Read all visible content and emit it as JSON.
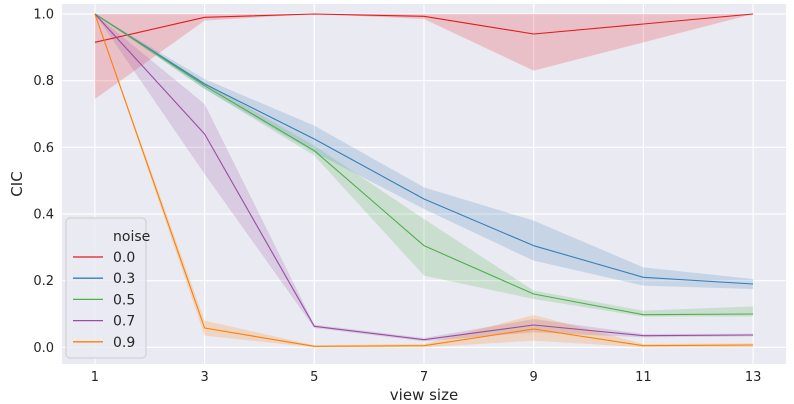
{
  "chart_data": {
    "type": "line",
    "xlabel": "view size",
    "ylabel": "CIC",
    "x": [
      1,
      3,
      5,
      7,
      9,
      11,
      13
    ],
    "xticks": [
      "1",
      "3",
      "5",
      "7",
      "9",
      "11",
      "13"
    ],
    "yticks": [
      "0.0",
      "0.2",
      "0.4",
      "0.6",
      "0.8",
      "1.0"
    ],
    "xlim": [
      0.4,
      13.6
    ],
    "ylim": [
      -0.05,
      1.03
    ],
    "grid": true,
    "background": "#eaeaf2",
    "legend": {
      "title": "noise",
      "placement": "lower-left"
    },
    "series": [
      {
        "name": "0.0",
        "color": "#e41a1c",
        "values": [
          0.915,
          0.99,
          1.0,
          0.993,
          0.94,
          0.97,
          1.0
        ],
        "lower": [
          0.745,
          0.98,
          1.0,
          0.985,
          0.83,
          0.915,
          1.0
        ],
        "upper": [
          1.0,
          1.0,
          1.0,
          1.0,
          1.0,
          1.0,
          1.0
        ]
      },
      {
        "name": "0.3",
        "color": "#377eb8",
        "values": [
          1.0,
          0.79,
          0.625,
          0.445,
          0.305,
          0.21,
          0.19
        ],
        "lower": [
          1.0,
          0.775,
          0.585,
          0.415,
          0.26,
          0.185,
          0.175
        ],
        "upper": [
          1.0,
          0.805,
          0.665,
          0.48,
          0.38,
          0.24,
          0.205
        ]
      },
      {
        "name": "0.5",
        "color": "#4daf4a",
        "values": [
          1.0,
          0.785,
          0.59,
          0.305,
          0.16,
          0.098,
          0.1
        ],
        "lower": [
          1.0,
          0.775,
          0.575,
          0.215,
          0.145,
          0.092,
          0.093
        ],
        "upper": [
          1.0,
          0.795,
          0.605,
          0.385,
          0.17,
          0.11,
          0.123
        ]
      },
      {
        "name": "0.7",
        "color": "#984ea3",
        "values": [
          1.0,
          0.64,
          0.063,
          0.023,
          0.067,
          0.035,
          0.037
        ],
        "lower": [
          1.0,
          0.52,
          0.058,
          0.018,
          0.045,
          0.03,
          0.033
        ],
        "upper": [
          1.0,
          0.73,
          0.068,
          0.028,
          0.085,
          0.04,
          0.041
        ]
      },
      {
        "name": "0.9",
        "color": "#ff7f00",
        "values": [
          1.0,
          0.058,
          0.003,
          0.005,
          0.055,
          0.005,
          0.007
        ],
        "lower": [
          1.0,
          0.035,
          0.0,
          0.0,
          0.02,
          0.0,
          0.0
        ],
        "upper": [
          1.0,
          0.08,
          0.006,
          0.01,
          0.097,
          0.01,
          0.012
        ]
      }
    ]
  }
}
